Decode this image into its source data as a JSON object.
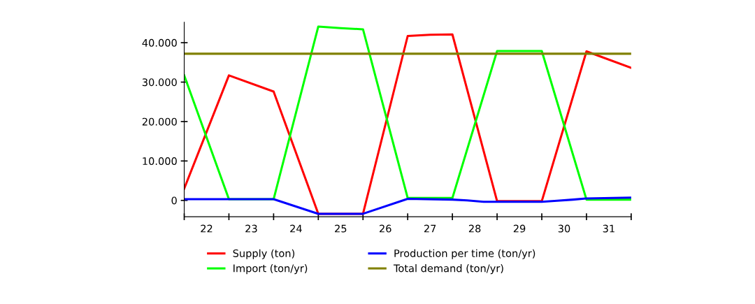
{
  "chart_data": {
    "type": "line",
    "xlim": [
      21.5,
      31.5
    ],
    "ylim": [
      -4150,
      45200
    ],
    "xticks": [
      {
        "value": 21.5,
        "label": null
      },
      {
        "value": 22,
        "label": "22"
      },
      {
        "value": 22.5,
        "label": null
      },
      {
        "value": 23,
        "label": "23"
      },
      {
        "value": 23.5,
        "label": null
      },
      {
        "value": 24,
        "label": "24"
      },
      {
        "value": 24.5,
        "label": null
      },
      {
        "value": 25,
        "label": "25"
      },
      {
        "value": 25.5,
        "label": null
      },
      {
        "value": 26,
        "label": "26"
      },
      {
        "value": 26.5,
        "label": null
      },
      {
        "value": 27,
        "label": "27"
      },
      {
        "value": 27.5,
        "label": null
      },
      {
        "value": 28,
        "label": "28"
      },
      {
        "value": 28.5,
        "label": null
      },
      {
        "value": 29,
        "label": "29"
      },
      {
        "value": 29.5,
        "label": null
      },
      {
        "value": 30,
        "label": "30"
      },
      {
        "value": 30.5,
        "label": null
      },
      {
        "value": 31,
        "label": "31"
      },
      {
        "value": 31.5,
        "label": null
      }
    ],
    "yticks": [
      {
        "value": 0,
        "label": "0"
      },
      {
        "value": 10000,
        "label": "10.000"
      },
      {
        "value": 20000,
        "label": "20.000"
      },
      {
        "value": 30000,
        "label": "30.000"
      },
      {
        "value": 40000,
        "label": "40.000"
      }
    ],
    "grid": false,
    "legend": "bottom",
    "marker": "none",
    "line_style": "solid",
    "series": [
      {
        "name": "Supply (ton)",
        "color": "#ff0000",
        "x": [
          21.5,
          22.5,
          23.5,
          24.5,
          25.5,
          26.5,
          27.0,
          27.5,
          28.5,
          29.5,
          30.5,
          31.5
        ],
        "values": [
          3000,
          31700,
          27600,
          -3400,
          -3400,
          41700,
          42000,
          42100,
          -200,
          -200,
          37800,
          33600
        ]
      },
      {
        "name": "Import (ton/yr)",
        "color": "#00ff00",
        "x": [
          21.5,
          22.5,
          23.5,
          24.5,
          25.0,
          25.5,
          26.5,
          27.5,
          28.5,
          29.5,
          30.5,
          31.5
        ],
        "values": [
          31700,
          300,
          300,
          44100,
          43700,
          43400,
          600,
          600,
          37900,
          37900,
          200,
          200
        ]
      },
      {
        "name": "Production per time (ton/yr)",
        "color": "#0000ff",
        "x": [
          21.5,
          23.5,
          24.5,
          25.5,
          26.5,
          27.5,
          27.83,
          28.2,
          29.5,
          29.84,
          30.2,
          30.49,
          31.5
        ],
        "values": [
          300,
          300,
          -3400,
          -3400,
          400,
          200,
          0,
          -350,
          -350,
          -100,
          200,
          500,
          700
        ]
      },
      {
        "name": "Total demand (ton/yr)",
        "color": "#808000",
        "x": [
          21.5,
          31.5
        ],
        "values": [
          37200,
          37200
        ]
      }
    ]
  }
}
